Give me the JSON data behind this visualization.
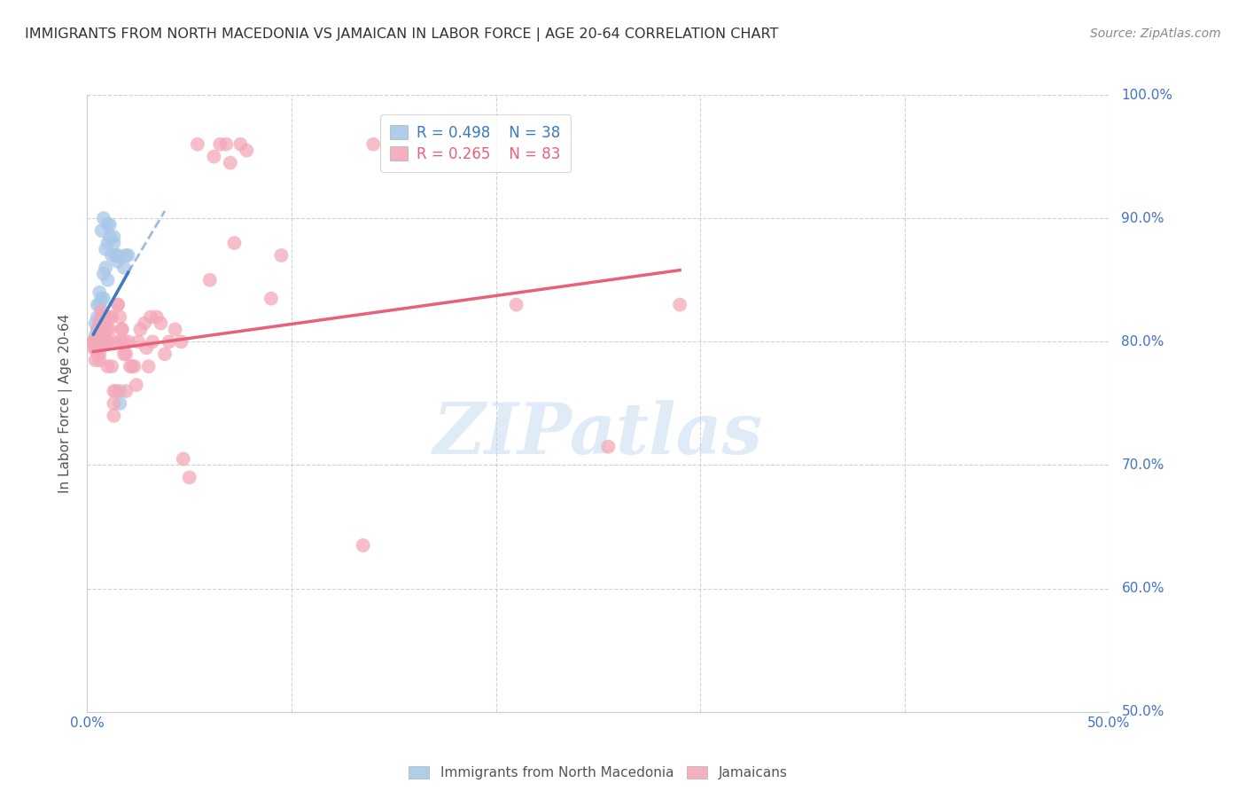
{
  "title": "IMMIGRANTS FROM NORTH MACEDONIA VS JAMAICAN IN LABOR FORCE | AGE 20-64 CORRELATION CHART",
  "source": "Source: ZipAtlas.com",
  "ylabel": "In Labor Force | Age 20-64",
  "xlim": [
    0.0,
    0.5
  ],
  "ylim": [
    0.5,
    1.0
  ],
  "yticks": [
    0.5,
    0.6,
    0.7,
    0.8,
    0.9,
    1.0
  ],
  "xticks": [
    0.0,
    0.1,
    0.2,
    0.3,
    0.4,
    0.5
  ],
  "xtick_labels": [
    "0.0%",
    "",
    "",
    "",
    "",
    "50.0%"
  ],
  "ytick_labels_right": [
    "50.0%",
    "60.0%",
    "70.0%",
    "80.0%",
    "90.0%",
    "100.0%"
  ],
  "legend_R_blue": "R = 0.498",
  "legend_N_blue": "N = 38",
  "legend_R_pink": "R = 0.265",
  "legend_N_pink": "N = 83",
  "blue_color": "#a8c8e8",
  "pink_color": "#f4a8b8",
  "blue_line_color": "#3a7abf",
  "pink_line_color": "#e8607a",
  "tick_label_color": "#4472c4",
  "blue_scatter": [
    [
      0.003,
      0.8
    ],
    [
      0.004,
      0.815
    ],
    [
      0.004,
      0.8
    ],
    [
      0.004,
      0.805
    ],
    [
      0.005,
      0.82
    ],
    [
      0.005,
      0.83
    ],
    [
      0.005,
      0.81
    ],
    [
      0.005,
      0.8
    ],
    [
      0.006,
      0.83
    ],
    [
      0.006,
      0.81
    ],
    [
      0.006,
      0.84
    ],
    [
      0.006,
      0.8
    ],
    [
      0.007,
      0.82
    ],
    [
      0.007,
      0.815
    ],
    [
      0.007,
      0.89
    ],
    [
      0.007,
      0.835
    ],
    [
      0.008,
      0.835
    ],
    [
      0.008,
      0.815
    ],
    [
      0.008,
      0.855
    ],
    [
      0.008,
      0.9
    ],
    [
      0.009,
      0.875
    ],
    [
      0.009,
      0.86
    ],
    [
      0.01,
      0.88
    ],
    [
      0.01,
      0.895
    ],
    [
      0.01,
      0.85
    ],
    [
      0.011,
      0.895
    ],
    [
      0.011,
      0.885
    ],
    [
      0.012,
      0.87
    ],
    [
      0.013,
      0.88
    ],
    [
      0.013,
      0.885
    ],
    [
      0.014,
      0.87
    ],
    [
      0.015,
      0.87
    ],
    [
      0.015,
      0.865
    ],
    [
      0.016,
      0.76
    ],
    [
      0.016,
      0.75
    ],
    [
      0.018,
      0.86
    ],
    [
      0.019,
      0.87
    ],
    [
      0.02,
      0.87
    ]
  ],
  "pink_scatter": [
    [
      0.003,
      0.8
    ],
    [
      0.003,
      0.795
    ],
    [
      0.004,
      0.785
    ],
    [
      0.004,
      0.8
    ],
    [
      0.004,
      0.795
    ],
    [
      0.004,
      0.8
    ],
    [
      0.005,
      0.81
    ],
    [
      0.005,
      0.79
    ],
    [
      0.005,
      0.795
    ],
    [
      0.005,
      0.8
    ],
    [
      0.006,
      0.785
    ],
    [
      0.006,
      0.79
    ],
    [
      0.006,
      0.8
    ],
    [
      0.006,
      0.815
    ],
    [
      0.007,
      0.82
    ],
    [
      0.007,
      0.825
    ],
    [
      0.007,
      0.81
    ],
    [
      0.008,
      0.82
    ],
    [
      0.008,
      0.815
    ],
    [
      0.008,
      0.8
    ],
    [
      0.009,
      0.82
    ],
    [
      0.009,
      0.815
    ],
    [
      0.009,
      0.81
    ],
    [
      0.009,
      0.82
    ],
    [
      0.01,
      0.8
    ],
    [
      0.01,
      0.8
    ],
    [
      0.01,
      0.81
    ],
    [
      0.01,
      0.78
    ],
    [
      0.011,
      0.81
    ],
    [
      0.011,
      0.82
    ],
    [
      0.012,
      0.82
    ],
    [
      0.012,
      0.78
    ],
    [
      0.013,
      0.76
    ],
    [
      0.013,
      0.75
    ],
    [
      0.013,
      0.74
    ],
    [
      0.014,
      0.76
    ],
    [
      0.014,
      0.8
    ],
    [
      0.015,
      0.83
    ],
    [
      0.015,
      0.83
    ],
    [
      0.016,
      0.82
    ],
    [
      0.016,
      0.8
    ],
    [
      0.017,
      0.81
    ],
    [
      0.017,
      0.81
    ],
    [
      0.018,
      0.79
    ],
    [
      0.018,
      0.8
    ],
    [
      0.019,
      0.79
    ],
    [
      0.019,
      0.76
    ],
    [
      0.02,
      0.8
    ],
    [
      0.021,
      0.78
    ],
    [
      0.022,
      0.78
    ],
    [
      0.023,
      0.78
    ],
    [
      0.024,
      0.765
    ],
    [
      0.025,
      0.8
    ],
    [
      0.026,
      0.81
    ],
    [
      0.028,
      0.815
    ],
    [
      0.029,
      0.795
    ],
    [
      0.03,
      0.78
    ],
    [
      0.031,
      0.82
    ],
    [
      0.032,
      0.8
    ],
    [
      0.034,
      0.82
    ],
    [
      0.036,
      0.815
    ],
    [
      0.038,
      0.79
    ],
    [
      0.04,
      0.8
    ],
    [
      0.043,
      0.81
    ],
    [
      0.046,
      0.8
    ],
    [
      0.047,
      0.705
    ],
    [
      0.05,
      0.69
    ],
    [
      0.054,
      0.96
    ],
    [
      0.06,
      0.85
    ],
    [
      0.062,
      0.95
    ],
    [
      0.065,
      0.96
    ],
    [
      0.068,
      0.96
    ],
    [
      0.07,
      0.945
    ],
    [
      0.072,
      0.88
    ],
    [
      0.075,
      0.96
    ],
    [
      0.078,
      0.955
    ],
    [
      0.09,
      0.835
    ],
    [
      0.095,
      0.87
    ],
    [
      0.135,
      0.635
    ],
    [
      0.14,
      0.96
    ],
    [
      0.21,
      0.83
    ],
    [
      0.255,
      0.715
    ],
    [
      0.29,
      0.83
    ]
  ],
  "blue_trendline_solid": [
    [
      0.003,
      0.806
    ],
    [
      0.02,
      0.856
    ]
  ],
  "blue_trendline_dashed": [
    [
      0.02,
      0.856
    ],
    [
      0.038,
      0.906
    ]
  ],
  "pink_trendline": [
    [
      0.003,
      0.792
    ],
    [
      0.29,
      0.858
    ]
  ],
  "watermark": "ZIPatlas",
  "legend_blue_label": "Immigrants from North Macedonia",
  "legend_pink_label": "Jamaicans"
}
